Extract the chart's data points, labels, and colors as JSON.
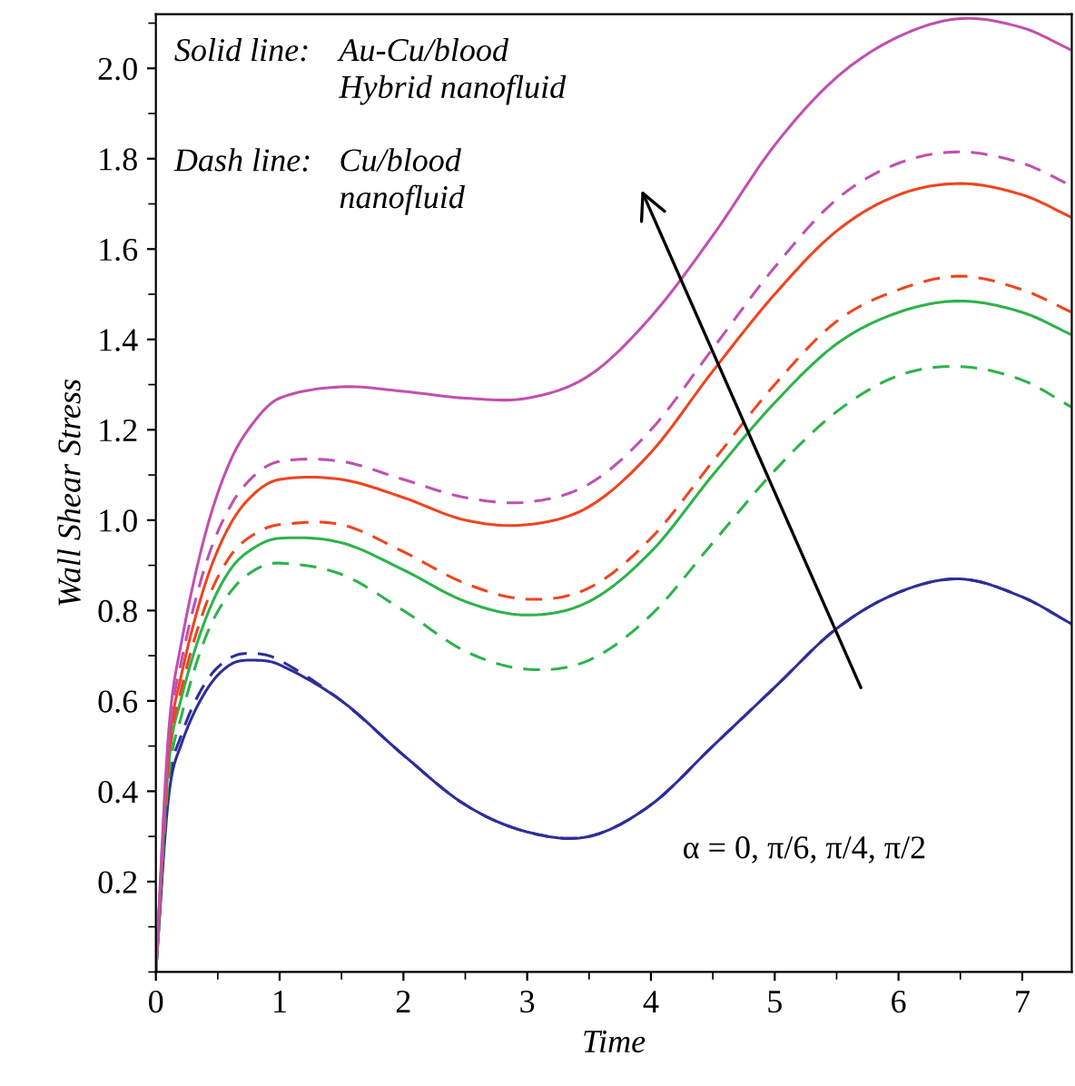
{
  "chart_data": {
    "type": "line",
    "xlabel": "Time",
    "ylabel": "Wall Shear Stress",
    "x": [
      0,
      0.1,
      0.2,
      0.4,
      0.6,
      0.8,
      1,
      1.5,
      2,
      2.5,
      3,
      3.5,
      4,
      4.5,
      5,
      5.5,
      6,
      6.5,
      7,
      7.4
    ],
    "series": [
      {
        "color": "#2e2e9a",
        "line_style": "solid",
        "values": [
          0,
          0.38,
          0.5,
          0.62,
          0.68,
          0.69,
          0.68,
          0.6,
          0.48,
          0.37,
          0.31,
          0.3,
          0.37,
          0.5,
          0.63,
          0.76,
          0.84,
          0.87,
          0.83,
          0.77
        ]
      },
      {
        "color": "#2e2e9a",
        "line_style": "dashed",
        "values": [
          0,
          0.4,
          0.52,
          0.64,
          0.695,
          0.705,
          0.69,
          0.6,
          0.48,
          0.37,
          0.31,
          0.3,
          0.37,
          0.5,
          0.63,
          0.76,
          0.84,
          0.87,
          0.83,
          0.77
        ]
      },
      {
        "color": "#2db34a",
        "line_style": "solid",
        "values": [
          0,
          0.45,
          0.6,
          0.78,
          0.89,
          0.94,
          0.96,
          0.95,
          0.89,
          0.82,
          0.79,
          0.82,
          0.93,
          1.1,
          1.26,
          1.39,
          1.46,
          1.485,
          1.46,
          1.41
        ]
      },
      {
        "color": "#2db34a",
        "line_style": "dashed",
        "values": [
          0,
          0.42,
          0.56,
          0.74,
          0.84,
          0.89,
          0.905,
          0.88,
          0.8,
          0.71,
          0.67,
          0.69,
          0.79,
          0.95,
          1.11,
          1.24,
          1.32,
          1.34,
          1.31,
          1.25
        ]
      },
      {
        "color": "#f0441f",
        "line_style": "solid",
        "values": [
          0,
          0.48,
          0.65,
          0.86,
          0.99,
          1.06,
          1.09,
          1.09,
          1.05,
          1.0,
          0.99,
          1.03,
          1.15,
          1.33,
          1.5,
          1.64,
          1.72,
          1.745,
          1.72,
          1.67
        ]
      },
      {
        "color": "#f0441f",
        "line_style": "dashed",
        "values": [
          0,
          0.46,
          0.62,
          0.81,
          0.92,
          0.97,
          0.99,
          0.99,
          0.93,
          0.86,
          0.825,
          0.85,
          0.96,
          1.13,
          1.3,
          1.44,
          1.51,
          1.54,
          1.51,
          1.46
        ]
      },
      {
        "color": "#c050b0",
        "line_style": "solid",
        "values": [
          0,
          0.52,
          0.72,
          0.97,
          1.13,
          1.22,
          1.27,
          1.295,
          1.285,
          1.27,
          1.27,
          1.32,
          1.45,
          1.63,
          1.83,
          1.98,
          2.07,
          2.11,
          2.09,
          2.04
        ]
      },
      {
        "color": "#c050b0",
        "line_style": "dashed",
        "values": [
          0,
          0.5,
          0.68,
          0.9,
          1.03,
          1.1,
          1.13,
          1.13,
          1.09,
          1.05,
          1.04,
          1.08,
          1.2,
          1.38,
          1.56,
          1.71,
          1.79,
          1.815,
          1.79,
          1.74
        ]
      }
    ],
    "xlim": [
      0,
      7.4
    ],
    "ylim": [
      0,
      2.12
    ],
    "xticks": [
      0,
      1,
      2,
      3,
      4,
      5,
      6,
      7
    ],
    "yticks": [
      0.2,
      0.4,
      0.6,
      0.8,
      {
        "value": 1,
        "label": "1.0"
      },
      1.2,
      1.4,
      1.6,
      1.8,
      {
        "value": 2,
        "label": "2.0"
      }
    ],
    "grid": false,
    "legend": false,
    "annotations": [
      "Solid line:",
      "Au-Cu/blood\nHybrid nanofluid",
      "Dash line:",
      "Cu/blood\nnanofluid",
      "α = 0, π/6, π/4, π/2"
    ]
  }
}
